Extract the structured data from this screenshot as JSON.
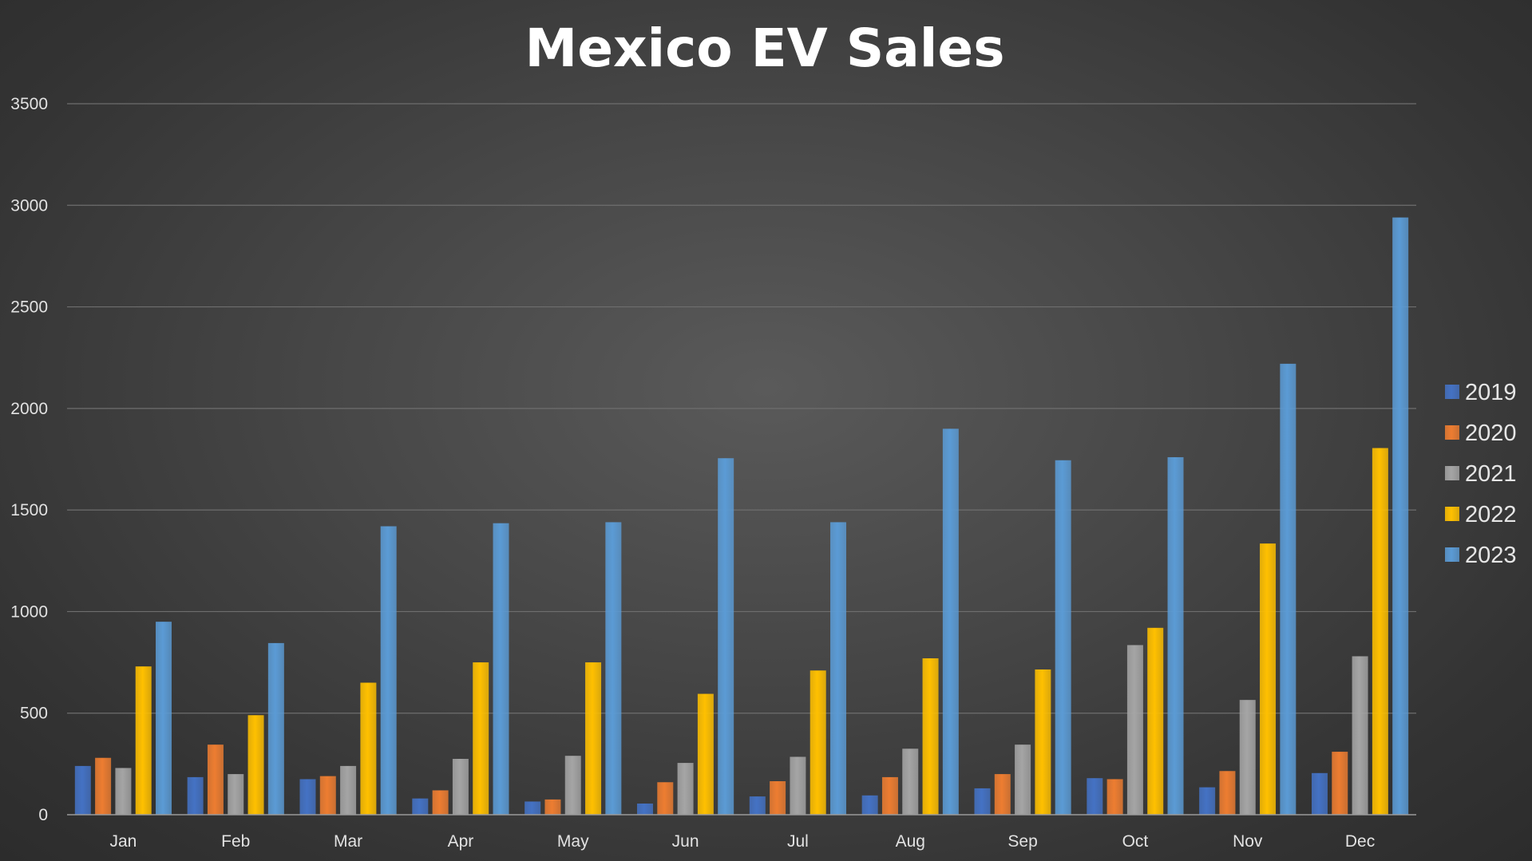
{
  "chart_data": {
    "type": "bar",
    "title": "Mexico EV Sales",
    "xlabel": "",
    "ylabel": "",
    "ylim": [
      0,
      3500
    ],
    "yticks": [
      0,
      500,
      1000,
      1500,
      2000,
      2500,
      3000,
      3500
    ],
    "grid": true,
    "legend_position": "right",
    "categories": [
      "Jan",
      "Feb",
      "Mar",
      "Apr",
      "May",
      "Jun",
      "Jul",
      "Aug",
      "Sep",
      "Oct",
      "Nov",
      "Dec"
    ],
    "series": [
      {
        "name": "2019",
        "color": "#4472c4",
        "values": [
          240,
          185,
          175,
          80,
          65,
          55,
          90,
          95,
          130,
          180,
          135,
          205
        ]
      },
      {
        "name": "2020",
        "color": "#ed7d31",
        "values": [
          280,
          345,
          190,
          120,
          75,
          160,
          165,
          185,
          200,
          175,
          215,
          310
        ]
      },
      {
        "name": "2021",
        "color": "#a5a5a5",
        "values": [
          230,
          200,
          240,
          275,
          290,
          255,
          285,
          325,
          345,
          835,
          565,
          780
        ]
      },
      {
        "name": "2022",
        "color": "#ffc000",
        "values": [
          730,
          490,
          650,
          750,
          750,
          595,
          710,
          770,
          715,
          920,
          1335,
          1805
        ]
      },
      {
        "name": "2023",
        "color": "#5b9bd5",
        "values": [
          950,
          845,
          1420,
          1435,
          1440,
          1755,
          1440,
          1900,
          1745,
          1760,
          2220,
          2940
        ]
      }
    ]
  }
}
